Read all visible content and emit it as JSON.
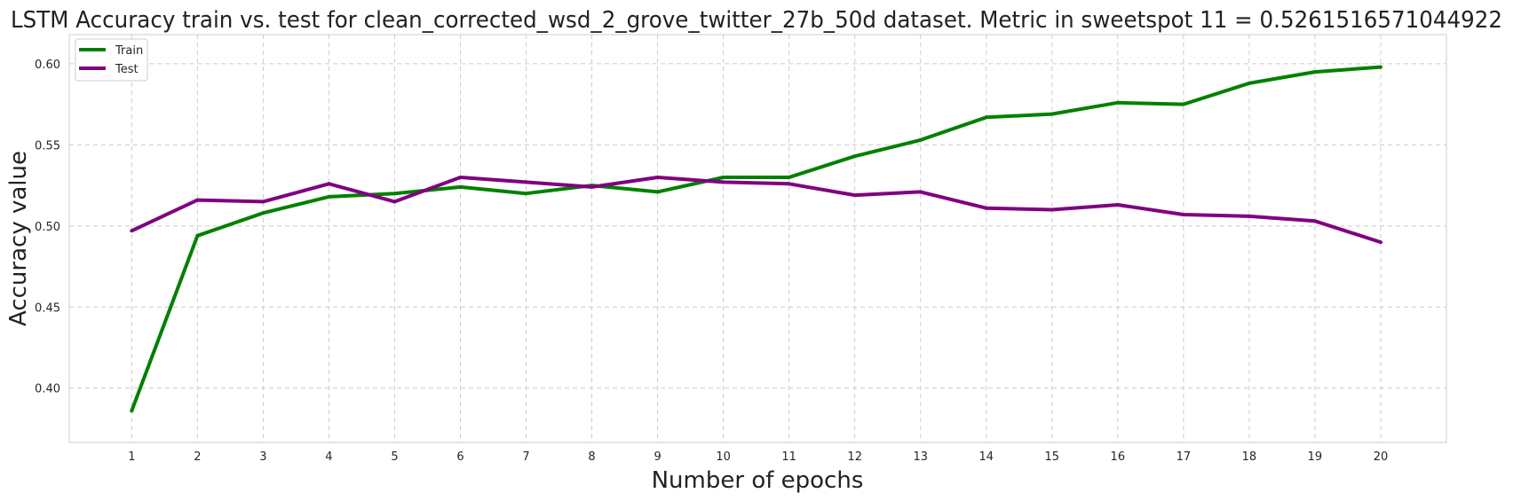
{
  "chart_data": {
    "type": "line",
    "title": "LSTM Accuracy train vs. test for clean_corrected_wsd_2_grove_twitter_27b_50d dataset. Metric in sweetspot 11 = 0.5261516571044922",
    "xlabel": "Number of epochs",
    "ylabel": "Accuracy value",
    "x": [
      1,
      2,
      3,
      4,
      5,
      6,
      7,
      8,
      9,
      10,
      11,
      12,
      13,
      14,
      15,
      16,
      17,
      18,
      19,
      20
    ],
    "xticks": [
      "1",
      "2",
      "3",
      "4",
      "5",
      "6",
      "7",
      "8",
      "9",
      "10",
      "11",
      "12",
      "13",
      "14",
      "15",
      "16",
      "17",
      "18",
      "19",
      "20"
    ],
    "yticks": [
      "0.40",
      "0.45",
      "0.50",
      "0.55",
      "0.60"
    ],
    "ytick_values": [
      0.4,
      0.45,
      0.5,
      0.55,
      0.6
    ],
    "xlim": [
      0.05,
      21.0
    ],
    "ylim": [
      0.3665,
      0.618
    ],
    "grid": true,
    "legend_position": "top-left",
    "series": [
      {
        "name": "Train",
        "color": "#008000",
        "values": [
          0.386,
          0.494,
          0.508,
          0.518,
          0.52,
          0.524,
          0.52,
          0.525,
          0.521,
          0.53,
          0.53,
          0.543,
          0.553,
          0.567,
          0.569,
          0.576,
          0.575,
          0.588,
          0.595,
          0.598
        ]
      },
      {
        "name": "Test",
        "color": "#800080",
        "values": [
          0.497,
          0.516,
          0.515,
          0.526,
          0.515,
          0.53,
          0.527,
          0.524,
          0.53,
          0.527,
          0.526,
          0.519,
          0.521,
          0.511,
          0.51,
          0.513,
          0.507,
          0.506,
          0.503,
          0.49
        ]
      }
    ]
  }
}
